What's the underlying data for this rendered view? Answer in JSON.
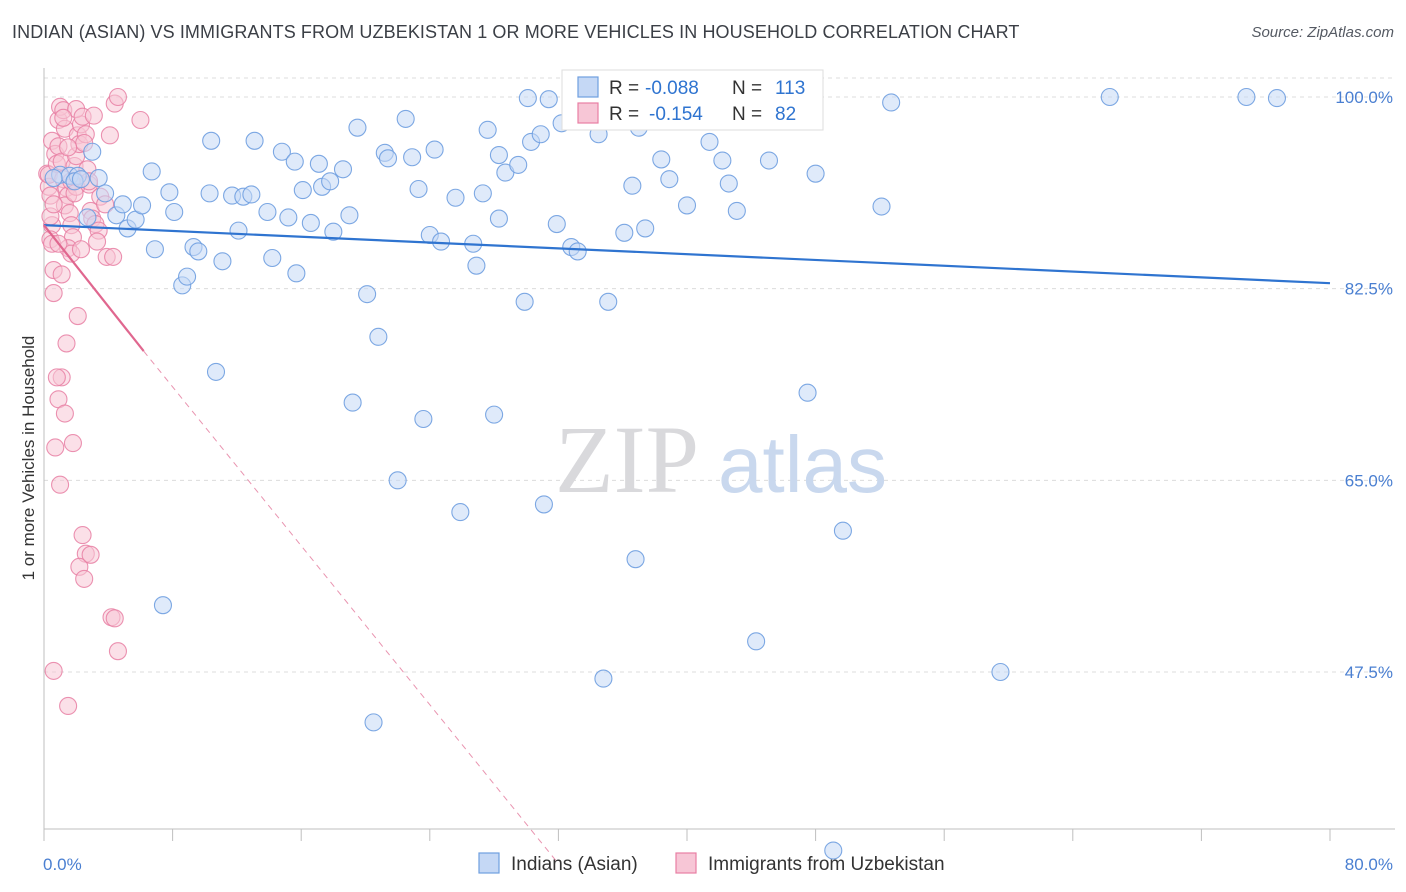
{
  "title": "INDIAN (ASIAN) VS IMMIGRANTS FROM UZBEKISTAN 1 OR MORE VEHICLES IN HOUSEHOLD CORRELATION CHART",
  "source": "Source: ZipAtlas.com",
  "watermark": {
    "zip": "ZIP",
    "atlas": "atlas"
  },
  "colors": {
    "blue": "#6f9fe0",
    "blue_fill": "#c5d8f5",
    "blue_line": "#2f74d0",
    "pink": "#e87fa3",
    "pink_fill": "#f7c6d6",
    "pink_line": "#e0678f",
    "tick": "#4a7fd1",
    "grid": "#dcdcdc"
  },
  "legend": {
    "r_label": "R =",
    "n_label": "N =",
    "series": [
      {
        "r": "-0.088",
        "n": "113"
      },
      {
        "r": "-0.154",
        "n": "82"
      }
    ]
  },
  "bottom_legend": [
    "Indians (Asian)",
    "Immigrants from Uzbekistan"
  ],
  "chart_data": {
    "type": "scatter",
    "title": "INDIAN (ASIAN) VS IMMIGRANTS FROM UZBEKISTAN 1 OR MORE VEHICLES IN HOUSEHOLD CORRELATION CHART",
    "xlabel": "",
    "ylabel": "1 or more Vehicles in Household",
    "xlim": [
      0,
      80
    ],
    "ylim": [
      30,
      101
    ],
    "x_tick_labels": [
      "0.0%",
      "80.0%"
    ],
    "y_ticks": [
      47.5,
      65.0,
      82.5,
      100.0
    ],
    "y_tick_labels": [
      "47.5%",
      "65.0%",
      "82.5%",
      "100.0%"
    ],
    "grid": true,
    "series": [
      {
        "name": "Indians (Asian)",
        "r": -0.088,
        "n": 113,
        "trend": [
          [
            0,
            88.3
          ],
          [
            80,
            83.0
          ]
        ],
        "points": [
          [
            1.0,
            92.9
          ],
          [
            1.6,
            92.8
          ],
          [
            2.1,
            92.8
          ],
          [
            0.6,
            92.6
          ],
          [
            1.9,
            92.3
          ],
          [
            2.3,
            92.5
          ],
          [
            3.4,
            92.6
          ],
          [
            3.8,
            91.2
          ],
          [
            2.7,
            89.0
          ],
          [
            4.5,
            89.2
          ],
          [
            4.9,
            90.2
          ],
          [
            5.2,
            88.0
          ],
          [
            5.7,
            88.8
          ],
          [
            6.1,
            90.1
          ],
          [
            6.7,
            93.2
          ],
          [
            6.9,
            86.1
          ],
          [
            7.8,
            91.3
          ],
          [
            8.1,
            89.5
          ],
          [
            8.6,
            82.8
          ],
          [
            8.9,
            83.6
          ],
          [
            9.3,
            86.3
          ],
          [
            9.6,
            85.9
          ],
          [
            10.3,
            91.2
          ],
          [
            10.4,
            96.0
          ],
          [
            10.7,
            74.9
          ],
          [
            11.1,
            85.0
          ],
          [
            11.7,
            91.0
          ],
          [
            12.1,
            87.8
          ],
          [
            12.4,
            90.9
          ],
          [
            12.9,
            91.1
          ],
          [
            13.1,
            96.0
          ],
          [
            13.9,
            89.5
          ],
          [
            14.2,
            85.3
          ],
          [
            14.8,
            95.0
          ],
          [
            15.2,
            89.0
          ],
          [
            15.6,
            94.1
          ],
          [
            15.7,
            83.9
          ],
          [
            16.1,
            91.5
          ],
          [
            16.6,
            88.5
          ],
          [
            17.1,
            93.9
          ],
          [
            17.3,
            91.8
          ],
          [
            17.8,
            92.3
          ],
          [
            18.0,
            87.7
          ],
          [
            18.6,
            93.4
          ],
          [
            19.0,
            89.2
          ],
          [
            19.2,
            72.1
          ],
          [
            19.5,
            97.2
          ],
          [
            20.1,
            82.0
          ],
          [
            20.8,
            78.1
          ],
          [
            21.2,
            94.9
          ],
          [
            21.4,
            94.4
          ],
          [
            22.0,
            65.0
          ],
          [
            22.5,
            98.0
          ],
          [
            22.9,
            94.5
          ],
          [
            23.3,
            91.6
          ],
          [
            23.6,
            70.6
          ],
          [
            24.0,
            87.4
          ],
          [
            24.3,
            95.2
          ],
          [
            24.7,
            86.8
          ],
          [
            25.6,
            90.8
          ],
          [
            25.9,
            62.1
          ],
          [
            26.7,
            86.6
          ],
          [
            26.9,
            84.6
          ],
          [
            27.3,
            91.2
          ],
          [
            27.6,
            97.0
          ],
          [
            28.0,
            71.0
          ],
          [
            28.3,
            94.7
          ],
          [
            28.7,
            93.1
          ],
          [
            29.5,
            93.8
          ],
          [
            29.9,
            81.3
          ],
          [
            30.3,
            95.9
          ],
          [
            30.9,
            96.6
          ],
          [
            30.1,
            99.9
          ],
          [
            31.1,
            62.8
          ],
          [
            31.4,
            99.8
          ],
          [
            31.9,
            88.4
          ],
          [
            32.2,
            97.6
          ],
          [
            32.8,
            86.3
          ],
          [
            33.2,
            85.9
          ],
          [
            34.0,
            99.0
          ],
          [
            34.5,
            96.6
          ],
          [
            35.1,
            81.3
          ],
          [
            36.1,
            87.6
          ],
          [
            36.6,
            91.9
          ],
          [
            37.0,
            97.2
          ],
          [
            37.4,
            88.0
          ],
          [
            38.4,
            94.3
          ],
          [
            38.9,
            92.5
          ],
          [
            40.0,
            90.1
          ],
          [
            41.4,
            95.9
          ],
          [
            42.2,
            94.2
          ],
          [
            42.6,
            92.1
          ],
          [
            43.1,
            89.6
          ],
          [
            43.9,
            98.8
          ],
          [
            45.1,
            94.2
          ],
          [
            46.3,
            98.5
          ],
          [
            47.5,
            73.0
          ],
          [
            48.0,
            93.0
          ],
          [
            49.7,
            60.4
          ],
          [
            52.1,
            90.0
          ],
          [
            52.7,
            99.5
          ],
          [
            59.5,
            47.5
          ],
          [
            66.3,
            100.0
          ],
          [
            74.8,
            100.0
          ],
          [
            76.7,
            99.9
          ],
          [
            36.8,
            57.8
          ],
          [
            34.8,
            46.9
          ],
          [
            20.5,
            42.9
          ],
          [
            49.1,
            31.2
          ],
          [
            44.3,
            50.3
          ],
          [
            7.4,
            53.6
          ],
          [
            3.0,
            95.0
          ],
          [
            28.3,
            88.9
          ]
        ]
      },
      {
        "name": "Immigrants from Uzbekistan",
        "r": -0.154,
        "n": 82,
        "trend": [
          [
            0,
            88.3
          ],
          [
            6.2,
            76.8
          ]
        ],
        "trend_extension": [
          [
            6.2,
            76.8
          ],
          [
            32.0,
            30.0
          ]
        ],
        "points": [
          [
            0.2,
            93.0
          ],
          [
            0.3,
            91.8
          ],
          [
            0.3,
            92.9
          ],
          [
            0.4,
            91.0
          ],
          [
            0.5,
            88.3
          ],
          [
            0.4,
            87.0
          ],
          [
            0.5,
            86.6
          ],
          [
            0.6,
            84.2
          ],
          [
            0.6,
            82.1
          ],
          [
            0.5,
            96.0
          ],
          [
            0.7,
            94.8
          ],
          [
            0.8,
            93.9
          ],
          [
            0.9,
            95.5
          ],
          [
            0.9,
            97.9
          ],
          [
            1.0,
            99.1
          ],
          [
            1.2,
            98.8
          ],
          [
            1.3,
            97.1
          ],
          [
            1.1,
            94.1
          ],
          [
            1.2,
            92.5
          ],
          [
            1.4,
            91.7
          ],
          [
            1.5,
            91.0
          ],
          [
            1.3,
            90.1
          ],
          [
            1.6,
            89.4
          ],
          [
            1.7,
            88.3
          ],
          [
            1.8,
            87.2
          ],
          [
            1.5,
            86.2
          ],
          [
            1.7,
            85.7
          ],
          [
            1.9,
            93.7
          ],
          [
            2.0,
            94.6
          ],
          [
            2.1,
            96.5
          ],
          [
            2.2,
            95.7
          ],
          [
            2.3,
            97.5
          ],
          [
            2.0,
            98.9
          ],
          [
            2.4,
            98.2
          ],
          [
            2.6,
            96.6
          ],
          [
            2.7,
            93.4
          ],
          [
            2.8,
            92.0
          ],
          [
            2.9,
            89.6
          ],
          [
            3.0,
            88.9
          ],
          [
            3.2,
            88.4
          ],
          [
            3.5,
            90.9
          ],
          [
            3.8,
            90.2
          ],
          [
            3.4,
            87.8
          ],
          [
            3.9,
            85.4
          ],
          [
            4.3,
            85.4
          ],
          [
            4.1,
            96.5
          ],
          [
            4.4,
            99.4
          ],
          [
            4.6,
            100.0
          ],
          [
            1.1,
            74.4
          ],
          [
            0.9,
            72.4
          ],
          [
            1.3,
            71.1
          ],
          [
            0.7,
            68.0
          ],
          [
            1.0,
            64.6
          ],
          [
            1.4,
            77.5
          ],
          [
            1.8,
            68.4
          ],
          [
            2.4,
            60.0
          ],
          [
            2.6,
            58.3
          ],
          [
            2.2,
            57.1
          ],
          [
            2.5,
            56.0
          ],
          [
            2.9,
            58.2
          ],
          [
            4.2,
            52.5
          ],
          [
            4.4,
            52.4
          ],
          [
            4.6,
            49.4
          ],
          [
            0.6,
            47.6
          ],
          [
            1.5,
            44.4
          ],
          [
            0.8,
            74.4
          ],
          [
            2.0,
            91.8
          ],
          [
            2.5,
            95.8
          ],
          [
            6.0,
            97.9
          ],
          [
            3.3,
            86.8
          ],
          [
            1.1,
            83.8
          ],
          [
            0.4,
            89.1
          ],
          [
            1.7,
            92.3
          ],
          [
            2.8,
            92.3
          ],
          [
            0.9,
            86.6
          ],
          [
            1.2,
            98.1
          ],
          [
            3.1,
            98.3
          ],
          [
            2.1,
            80.0
          ],
          [
            1.9,
            91.2
          ],
          [
            0.6,
            90.2
          ],
          [
            1.5,
            95.4
          ],
          [
            2.3,
            86.1
          ]
        ]
      }
    ]
  }
}
